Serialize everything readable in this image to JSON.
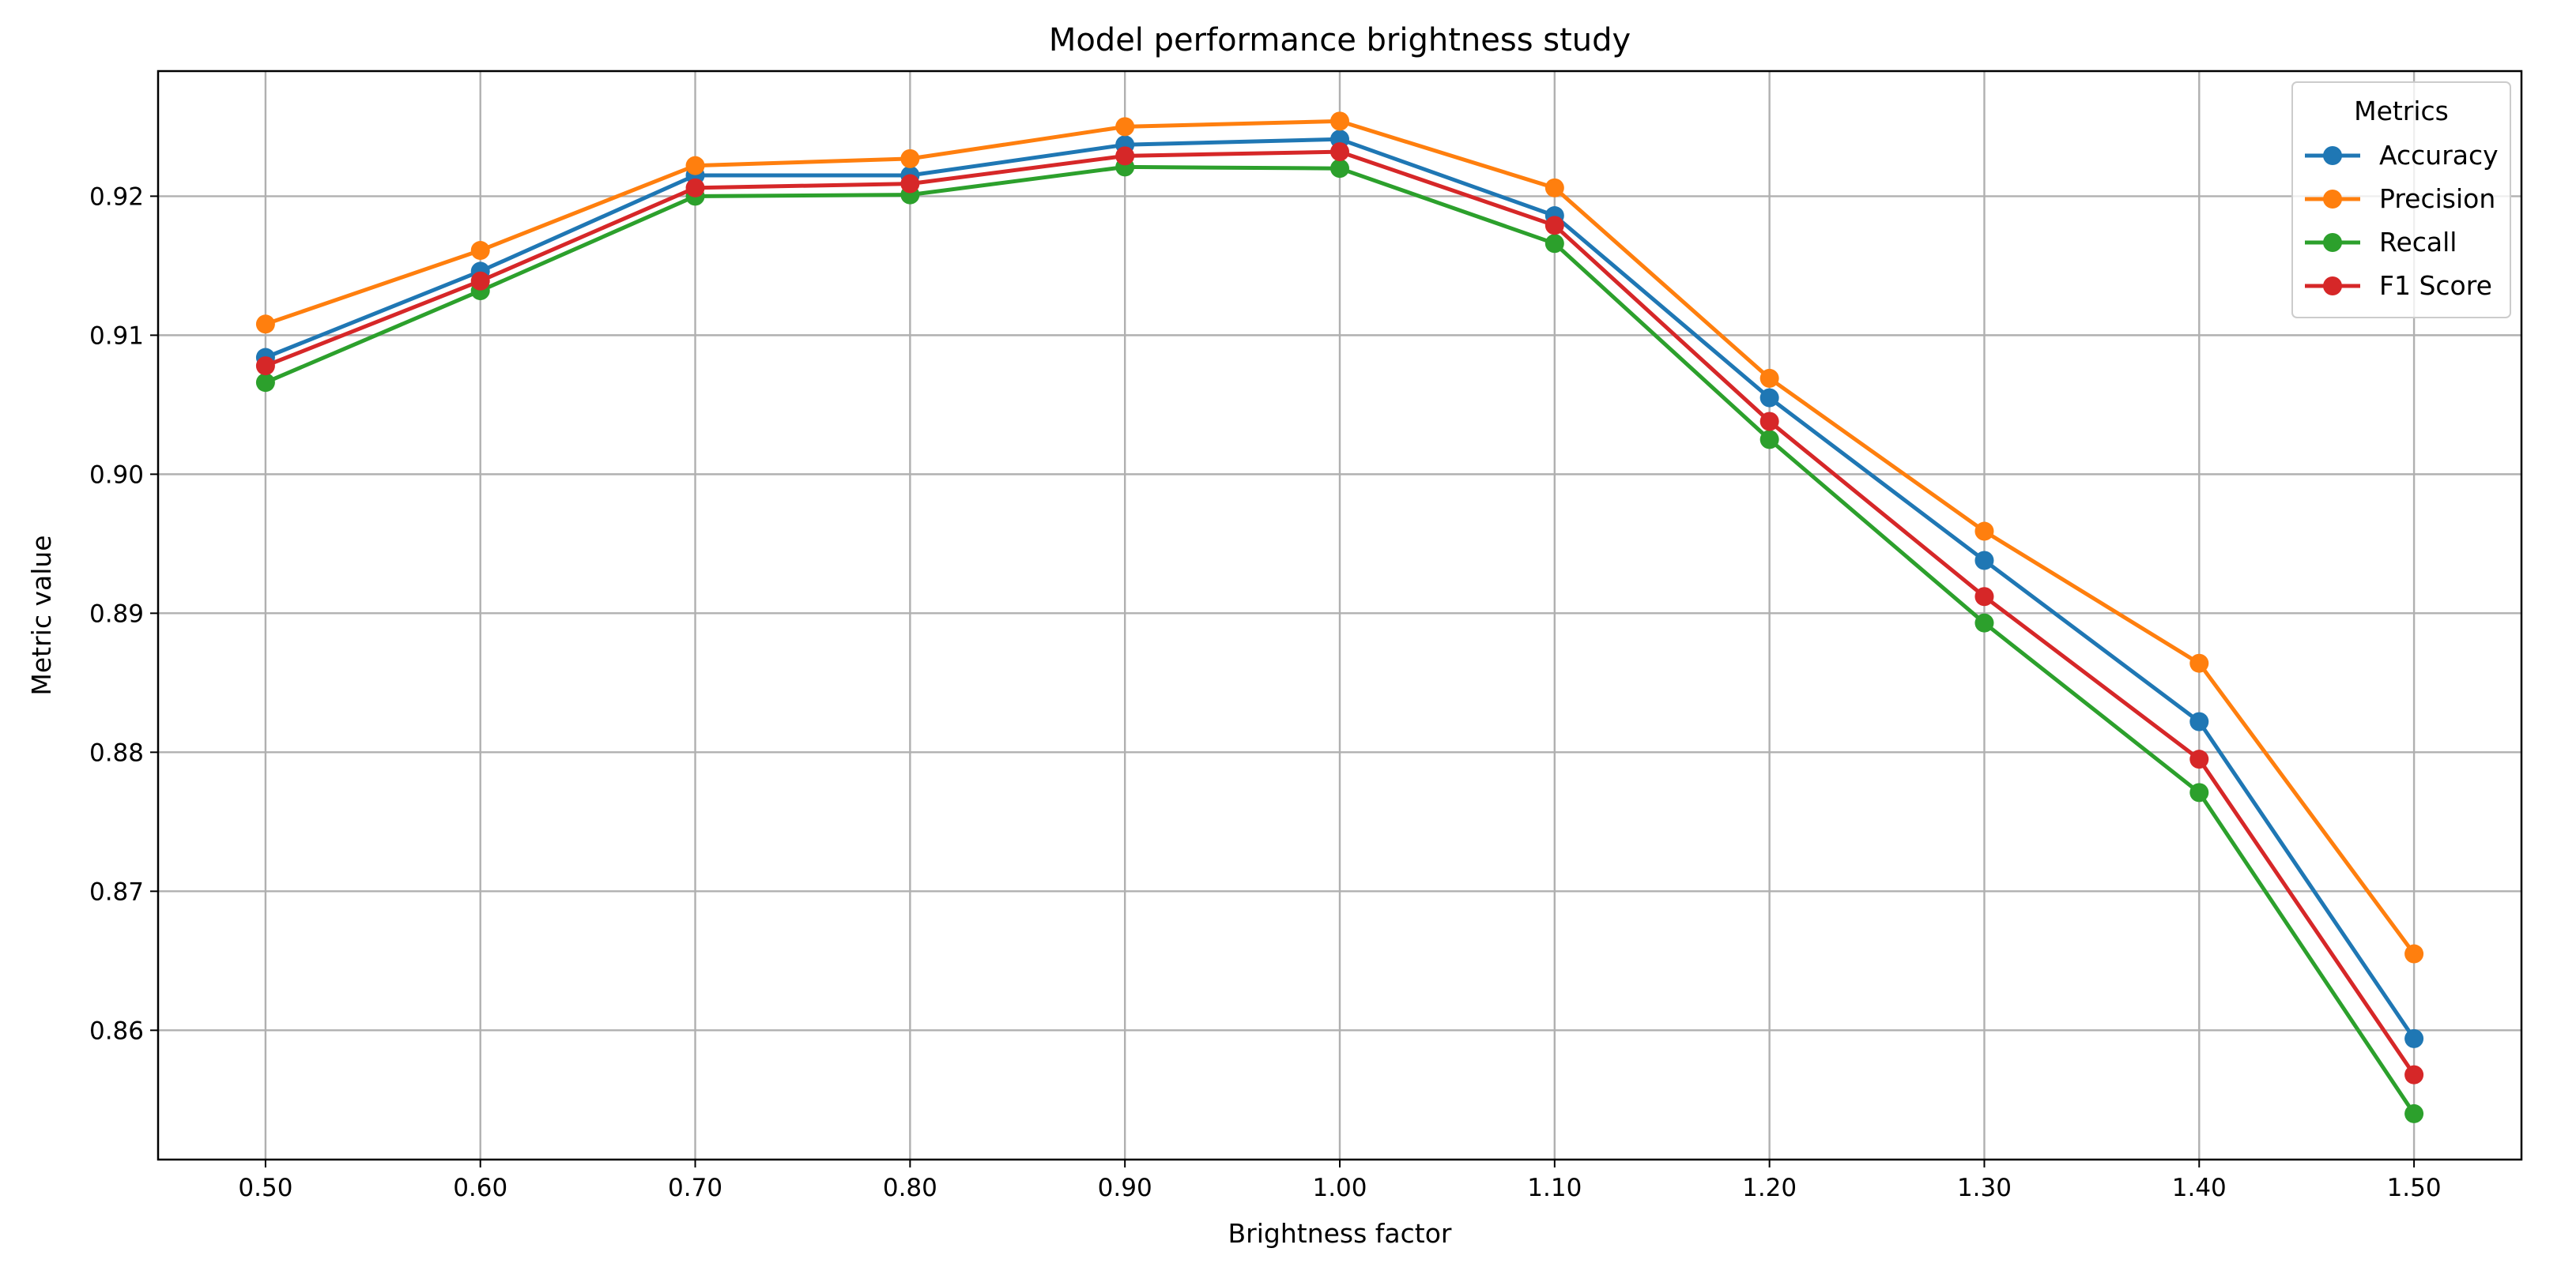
{
  "chart_data": {
    "type": "line",
    "title": "Model performance brightness study",
    "xlabel": "Brightness factor",
    "ylabel": "Metric value",
    "x": [
      0.5,
      0.6,
      0.7,
      0.8,
      0.9,
      1.0,
      1.1,
      1.2,
      1.3,
      1.4,
      1.5
    ],
    "x_tick_labels": [
      "0.50",
      "0.60",
      "0.70",
      "0.80",
      "0.90",
      "1.00",
      "1.10",
      "1.20",
      "1.30",
      "1.40",
      "1.50"
    ],
    "xlim": [
      0.45,
      1.55
    ],
    "ylim": [
      0.8507,
      0.929
    ],
    "y_ticks": [
      0.86,
      0.87,
      0.88,
      0.89,
      0.9,
      0.91,
      0.92
    ],
    "y_tick_labels": [
      "0.86",
      "0.87",
      "0.88",
      "0.89",
      "0.90",
      "0.91",
      "0.92"
    ],
    "grid": true,
    "legend": {
      "title": "Metrics",
      "position": "top-right"
    },
    "series": [
      {
        "name": "Accuracy",
        "color": "#1f77b4",
        "values": [
          0.9084,
          0.9146,
          0.9215,
          0.9215,
          0.9237,
          0.9241,
          0.9186,
          0.9055,
          0.8938,
          0.8822,
          0.8594
        ]
      },
      {
        "name": "Precision",
        "color": "#ff7f0e",
        "values": [
          0.9108,
          0.9161,
          0.9222,
          0.9227,
          0.925,
          0.9254,
          0.9206,
          0.9069,
          0.8959,
          0.8864,
          0.8655
        ]
      },
      {
        "name": "Recall",
        "color": "#2ca02c",
        "values": [
          0.9066,
          0.9132,
          0.92,
          0.9201,
          0.9221,
          0.922,
          0.9166,
          0.9025,
          0.8893,
          0.8771,
          0.854
        ]
      },
      {
        "name": "F1 Score",
        "color": "#d62728",
        "values": [
          0.9078,
          0.9139,
          0.9206,
          0.9209,
          0.9229,
          0.9232,
          0.9179,
          0.9038,
          0.8912,
          0.8795,
          0.8568
        ]
      }
    ]
  }
}
